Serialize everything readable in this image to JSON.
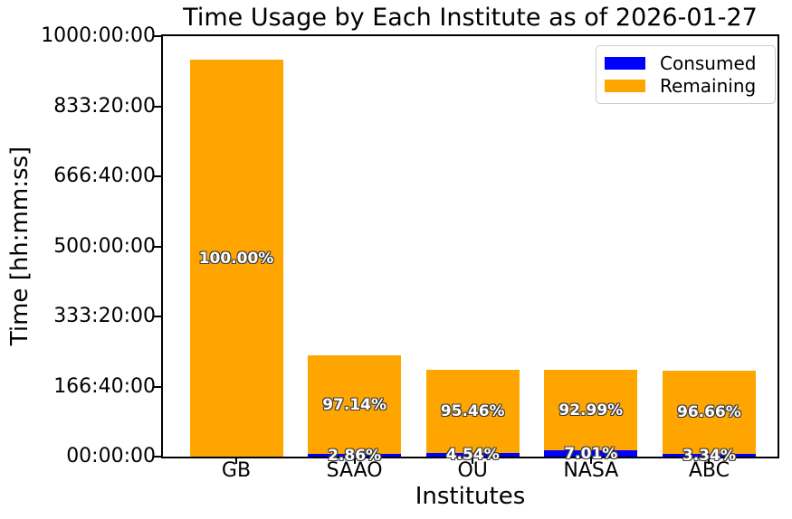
{
  "chart_data": {
    "type": "bar",
    "stacked": true,
    "title": "Time Usage by Each Institute as of 2026-01-27",
    "xlabel": "Institutes",
    "ylabel": "Time [hh:mm:ss]",
    "ylim_hours": [
      0,
      1000
    ],
    "ytick_labels": [
      "00:00:00",
      "166:40:00",
      "333:20:00",
      "500:00:00",
      "666:40:00",
      "833:20:00",
      "1000:00:00"
    ],
    "grid": false,
    "legend_position": "upper right",
    "legend": [
      {
        "name": "Consumed",
        "color": "#0000ff"
      },
      {
        "name": "Remaining",
        "color": "#ffa500"
      }
    ],
    "categories": [
      "GB",
      "SAAO",
      "OU",
      "NASA",
      "ABC"
    ],
    "bars": [
      {
        "category": "GB",
        "total_hours_est": 944,
        "consumed_pct": 0.0,
        "remaining_pct": 100.0,
        "consumed_label": "",
        "remaining_label": "100.00%"
      },
      {
        "category": "SAAO",
        "total_hours_est": 241,
        "consumed_pct": 2.86,
        "remaining_pct": 97.14,
        "consumed_label": "2.86%",
        "remaining_label": "97.14%"
      },
      {
        "category": "OU",
        "total_hours_est": 206,
        "consumed_pct": 4.54,
        "remaining_pct": 95.46,
        "consumed_label": "4.54%",
        "remaining_label": "95.46%"
      },
      {
        "category": "NASA",
        "total_hours_est": 206,
        "consumed_pct": 7.01,
        "remaining_pct": 92.99,
        "consumed_label": "7.01%",
        "remaining_label": "92.99%"
      },
      {
        "category": "ABC",
        "total_hours_est": 204,
        "consumed_pct": 3.34,
        "remaining_pct": 96.66,
        "consumed_label": "3.34%",
        "remaining_label": "96.66%"
      }
    ],
    "colors": {
      "consumed": "#0000ff",
      "remaining": "#ffa500",
      "bar_label_text": "#ffffff",
      "bar_label_outline": "#3c3c3c",
      "axis": "#000000",
      "background": "#ffffff"
    }
  }
}
